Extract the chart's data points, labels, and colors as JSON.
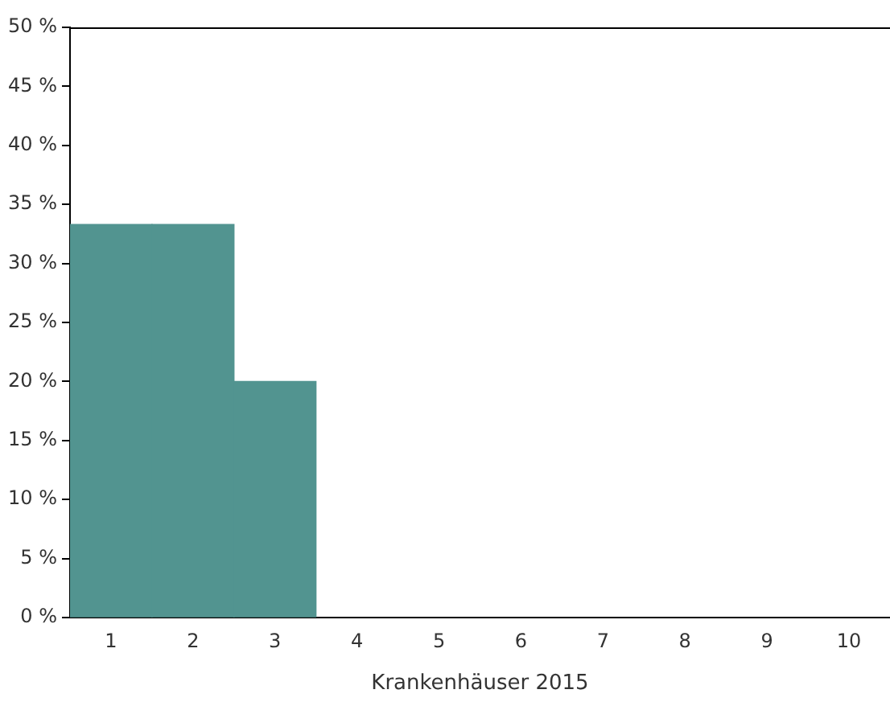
{
  "chart_data": {
    "type": "bar",
    "xlabel": "Krankenhäuser 2015",
    "categories": [
      "1",
      "2",
      "3",
      "4",
      "5",
      "6",
      "7",
      "8",
      "9",
      "10"
    ],
    "values": [
      33.3,
      33.3,
      20,
      null,
      null,
      null,
      null,
      null,
      null,
      null
    ],
    "color": "#529490",
    "ylim": [
      0,
      50
    ],
    "yticks": [
      {
        "value": 0,
        "label": "0 %"
      },
      {
        "value": 5,
        "label": "5 %"
      },
      {
        "value": 10,
        "label": "10 %"
      },
      {
        "value": 15,
        "label": "15 %"
      },
      {
        "value": 20,
        "label": "20 %"
      },
      {
        "value": 25,
        "label": "25 %"
      },
      {
        "value": 30,
        "label": "30 %"
      },
      {
        "value": 35,
        "label": "35 %"
      },
      {
        "value": 40,
        "label": "40 %"
      },
      {
        "value": 45,
        "label": "45 %"
      },
      {
        "value": 50,
        "label": "50 %"
      }
    ],
    "grid": false,
    "legend": false
  }
}
